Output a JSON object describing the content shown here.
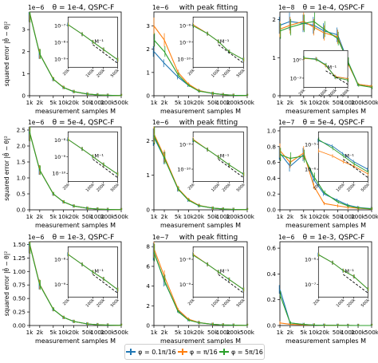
{
  "colors": {
    "series": [
      "#1f77b4",
      "#ff7f0e",
      "#2ca02c"
    ],
    "dashed": "#000000"
  },
  "legend": {
    "items": [
      {
        "label": "φ = 0.1π/16",
        "color": "#1f77b4"
      },
      {
        "label": "φ = π/16",
        "color": "#ff7f0e"
      },
      {
        "label": "φ = 5π/16",
        "color": "#2ca02c"
      }
    ]
  },
  "chart_data": [
    {
      "type": "line",
      "title": "θ = 1e-4, QSPC-F",
      "offset": "1e−6",
      "xlabel": "measurement samples M",
      "ylabel": "squared error |θ̂ − θ|²",
      "x": [
        1000,
        2000,
        5000,
        10000,
        20000,
        50000,
        100000,
        200000,
        500000
      ],
      "x_ticks": [
        "1k",
        "2k",
        "5k",
        "10k",
        "20k",
        "50k",
        "100k",
        "200k",
        "500k"
      ],
      "ylim": [
        0,
        3.8
      ],
      "y_ticks": [
        0,
        1,
        2,
        3
      ],
      "series": [
        {
          "values": [
            3.8,
            1.9,
            0.75,
            0.38,
            0.19,
            0.08,
            0.04,
            0.02,
            0.008
          ]
        },
        {
          "values": [
            3.8,
            1.9,
            0.76,
            0.38,
            0.19,
            0.08,
            0.04,
            0.02,
            0.008
          ]
        },
        {
          "values": [
            3.78,
            1.89,
            0.75,
            0.37,
            0.19,
            0.08,
            0.04,
            0.02,
            0.008
          ]
        }
      ],
      "inset": {
        "y_ticks": [
          "10⁻⁷",
          "10⁻⁸",
          "10⁻⁹"
        ],
        "x_ticks": [
          "20k",
          "100k",
          "200k",
          "500k"
        ],
        "annotation": "M⁻¹"
      }
    },
    {
      "type": "line",
      "title": "with peak fitting",
      "offset": "1e−6",
      "xlabel": "measurement samples M",
      "ylabel": "",
      "x": [
        1000,
        2000,
        5000,
        10000,
        20000,
        50000,
        100000,
        200000,
        500000
      ],
      "x_ticks": [
        "1k",
        "2k",
        "5k",
        "10k",
        "20k",
        "50k",
        "100k",
        "200k",
        "500k"
      ],
      "ylim": [
        0,
        3.6
      ],
      "y_ticks": [
        0,
        1,
        2,
        3
      ],
      "series": [
        {
          "values": [
            1.9,
            1.4,
            0.8,
            0.45,
            0.22,
            0.1,
            0.05,
            0.02,
            0.01
          ]
        },
        {
          "values": [
            3.0,
            2.4,
            1.0,
            0.5,
            0.22,
            0.1,
            0.05,
            0.02,
            0.01
          ]
        },
        {
          "values": [
            2.4,
            1.9,
            0.9,
            0.45,
            0.2,
            0.1,
            0.05,
            0.02,
            0.01
          ]
        }
      ],
      "inset": {
        "y_ticks": [
          "10⁻⁸",
          "10⁻⁹",
          "10⁻¹⁰"
        ],
        "x_ticks": [
          "20k",
          "100k",
          "200k",
          "500k"
        ],
        "annotation": "M⁻¹"
      }
    },
    {
      "type": "line",
      "title": "θ = 1e-4, QSPC-F",
      "offset": "1e−8",
      "xlabel": "measurement samples M",
      "ylabel": "",
      "x": [
        1000,
        2000,
        5000,
        10000,
        20000,
        50000,
        100000,
        200000,
        500000
      ],
      "x_ticks": [
        "1k",
        "2k",
        "5k",
        "10k",
        "20k",
        "50k",
        "100k",
        "200k",
        "500k"
      ],
      "ylim": [
        0,
        2.2
      ],
      "y_ticks": [
        0,
        1,
        2
      ],
      "series": [
        {
          "values": [
            1.85,
            1.95,
            1.9,
            1.85,
            1.7,
            1.6,
            0.9,
            0.3,
            0.25
          ]
        },
        {
          "values": [
            1.75,
            1.85,
            1.95,
            1.8,
            1.65,
            1.55,
            0.85,
            0.3,
            0.25
          ]
        },
        {
          "values": [
            1.7,
            1.8,
            1.9,
            1.95,
            1.75,
            1.5,
            0.9,
            0.28,
            0.22
          ]
        }
      ],
      "inset": {
        "y_ticks": [
          "10⁰",
          "10⁻³"
        ],
        "x_ticks": [
          "20k",
          "100k",
          "200k",
          "500k"
        ],
        "annotation": "M⁻¹"
      }
    },
    {
      "type": "line",
      "title": "θ = 5e-4, QSPC-F",
      "offset": "1e−6",
      "xlabel": "measurement samples M",
      "ylabel": "squared error |θ̂ − θ|²",
      "x": [
        1000,
        2000,
        5000,
        10000,
        20000,
        50000,
        100000,
        200000,
        500000
      ],
      "x_ticks": [
        "1k",
        "2k",
        "5k",
        "10k",
        "20k",
        "50k",
        "100k",
        "200k",
        "500k"
      ],
      "ylim": [
        0,
        2.6
      ],
      "y_ticks": [
        0.0,
        0.5,
        1.0,
        1.5,
        2.0,
        2.5
      ],
      "series": [
        {
          "values": [
            2.45,
            1.25,
            0.5,
            0.25,
            0.12,
            0.05,
            0.025,
            0.012,
            0.005
          ]
        },
        {
          "values": [
            2.45,
            1.25,
            0.5,
            0.25,
            0.12,
            0.05,
            0.025,
            0.012,
            0.005
          ]
        },
        {
          "values": [
            2.44,
            1.24,
            0.5,
            0.25,
            0.12,
            0.05,
            0.025,
            0.012,
            0.005
          ]
        }
      ],
      "inset": {
        "y_ticks": [
          "10⁻⁸",
          "10⁻⁹",
          "10⁻¹⁰"
        ],
        "x_ticks": [
          "20k",
          "100k",
          "200k",
          "500k"
        ],
        "annotation": "M⁻¹"
      }
    },
    {
      "type": "line",
      "title": "with peak fitting",
      "offset": "1e−6",
      "xlabel": "measurement samples M",
      "ylabel": "",
      "x": [
        1000,
        2000,
        5000,
        10000,
        20000,
        50000,
        100000,
        200000,
        500000
      ],
      "x_ticks": [
        "1k",
        "2k",
        "5k",
        "10k",
        "20k",
        "50k",
        "100k",
        "200k",
        "500k"
      ],
      "ylim": [
        0,
        2.4
      ],
      "y_ticks": [
        0,
        1,
        2
      ],
      "series": [
        {
          "values": [
            2.1,
            1.5,
            0.6,
            0.28,
            0.12,
            0.05,
            0.025,
            0.012,
            0.005
          ]
        },
        {
          "values": [
            2.2,
            1.55,
            0.62,
            0.3,
            0.13,
            0.05,
            0.025,
            0.012,
            0.005
          ]
        },
        {
          "values": [
            2.15,
            1.5,
            0.6,
            0.28,
            0.12,
            0.05,
            0.025,
            0.012,
            0.005
          ]
        }
      ],
      "inset": {
        "y_ticks": [
          "10⁻⁹",
          "10⁻¹⁰"
        ],
        "x_ticks": [
          "20k",
          "100k",
          "200k",
          "500k"
        ],
        "annotation": "M⁻¹"
      }
    },
    {
      "type": "line",
      "title": "θ = 5e-4, QSPC-F",
      "offset": "1e−7",
      "xlabel": "measurement samples M",
      "ylabel": "",
      "x": [
        1000,
        2000,
        5000,
        10000,
        20000,
        50000,
        100000,
        200000,
        500000
      ],
      "x_ticks": [
        "1k",
        "2k",
        "5k",
        "10k",
        "20k",
        "50k",
        "100k",
        "200k",
        "500k"
      ],
      "ylim": [
        0,
        1.05
      ],
      "y_ticks": [
        0.0,
        0.2,
        0.4,
        0.6,
        0.8,
        1.0
      ],
      "series": [
        {
          "values": [
            0.72,
            0.55,
            0.7,
            0.38,
            0.2,
            0.12,
            0.06,
            0.03,
            0.015
          ]
        },
        {
          "values": [
            0.75,
            0.6,
            0.72,
            0.3,
            0.08,
            0.05,
            0.03,
            0.02,
            0.01
          ]
        },
        {
          "values": [
            0.7,
            0.65,
            0.68,
            0.42,
            0.22,
            0.1,
            0.05,
            0.025,
            0.012
          ]
        }
      ],
      "inset": {
        "y_ticks": [
          "10⁻⁵",
          "10⁻⁶"
        ],
        "x_ticks": [
          "20k",
          "100k",
          "200k",
          "500k"
        ],
        "annotation": "M⁻¹"
      }
    },
    {
      "type": "line",
      "title": "θ = 1e-3, QSPC-F",
      "offset": "1e−6",
      "xlabel": "measurement samples M",
      "ylabel": "squared error |θ̂ − θ|²",
      "x": [
        1000,
        2000,
        5000,
        10000,
        20000,
        50000,
        100000,
        200000,
        500000
      ],
      "x_ticks": [
        "1k",
        "2k",
        "5k",
        "10k",
        "20k",
        "50k",
        "100k",
        "200k",
        "500k"
      ],
      "ylim": [
        0,
        1.55
      ],
      "y_ticks": [
        0.0,
        0.25,
        0.5,
        0.75,
        1.0,
        1.25,
        1.5
      ],
      "series": [
        {
          "values": [
            1.52,
            0.76,
            0.3,
            0.15,
            0.076,
            0.03,
            0.015,
            0.008,
            0.003
          ]
        },
        {
          "values": [
            1.52,
            0.76,
            0.3,
            0.15,
            0.076,
            0.03,
            0.015,
            0.008,
            0.003
          ]
        },
        {
          "values": [
            1.51,
            0.75,
            0.3,
            0.15,
            0.075,
            0.03,
            0.015,
            0.008,
            0.003
          ]
        }
      ],
      "inset": {
        "y_ticks": [
          "10⁻⁸",
          "10⁻⁹"
        ],
        "x_ticks": [
          "20k",
          "100k",
          "200k",
          "500k"
        ],
        "annotation": "M⁻¹"
      }
    },
    {
      "type": "line",
      "title": "with peak fitting",
      "offset": "1e−7",
      "xlabel": "measurement samples M",
      "ylabel": "",
      "x": [
        1000,
        2000,
        5000,
        10000,
        20000,
        50000,
        100000,
        200000,
        500000
      ],
      "x_ticks": [
        "1k",
        "2k",
        "5k",
        "10k",
        "20k",
        "50k",
        "100k",
        "200k",
        "500k"
      ],
      "ylim": [
        0,
        8.5
      ],
      "y_ticks": [
        0,
        2,
        4,
        6,
        8
      ],
      "series": [
        {
          "values": [
            7.5,
            4.5,
            1.5,
            0.6,
            0.3,
            0.12,
            0.06,
            0.03,
            0.012
          ]
        },
        {
          "values": [
            7.8,
            5.0,
            1.6,
            0.65,
            0.3,
            0.12,
            0.06,
            0.03,
            0.012
          ]
        },
        {
          "values": [
            7.4,
            4.6,
            1.4,
            0.55,
            0.28,
            0.12,
            0.06,
            0.03,
            0.012
          ]
        }
      ],
      "inset": {
        "y_ticks": [
          "10⁻⁸",
          "10⁻⁹"
        ],
        "x_ticks": [
          "20k",
          "100k",
          "200k",
          "500k"
        ],
        "annotation": "M⁻¹"
      }
    },
    {
      "type": "line",
      "title": "θ = 1e-3, QSPC-F",
      "offset": "1e−6",
      "xlabel": "measurement samples M",
      "ylabel": "",
      "x": [
        1000,
        2000,
        5000,
        10000,
        20000,
        50000,
        100000,
        200000,
        500000
      ],
      "x_ticks": [
        "1k",
        "2k",
        "5k",
        "10k",
        "20k",
        "50k",
        "100k",
        "200k",
        "500k"
      ],
      "ylim": [
        0,
        0.65
      ],
      "y_ticks": [
        0.0,
        0.2,
        0.4,
        0.6
      ],
      "series": [
        {
          "values": [
            0.28,
            0.02,
            0.008,
            0.004,
            0.002,
            0.001,
            0.0005,
            0.0003,
            0.0001
          ]
        },
        {
          "values": [
            0.02,
            0.01,
            0.005,
            0.003,
            0.002,
            0.001,
            0.0005,
            0.0003,
            0.0001
          ]
        },
        {
          "values": [
            0.24,
            0.02,
            0.008,
            0.004,
            0.002,
            0.001,
            0.0005,
            0.0003,
            0.0001
          ]
        }
      ],
      "inset": {
        "y_ticks": [
          "10⁻⁶",
          "10⁻⁷"
        ],
        "x_ticks": [
          "20k",
          "100k",
          "200k",
          "500k"
        ],
        "annotation": "M⁻¹"
      }
    }
  ]
}
